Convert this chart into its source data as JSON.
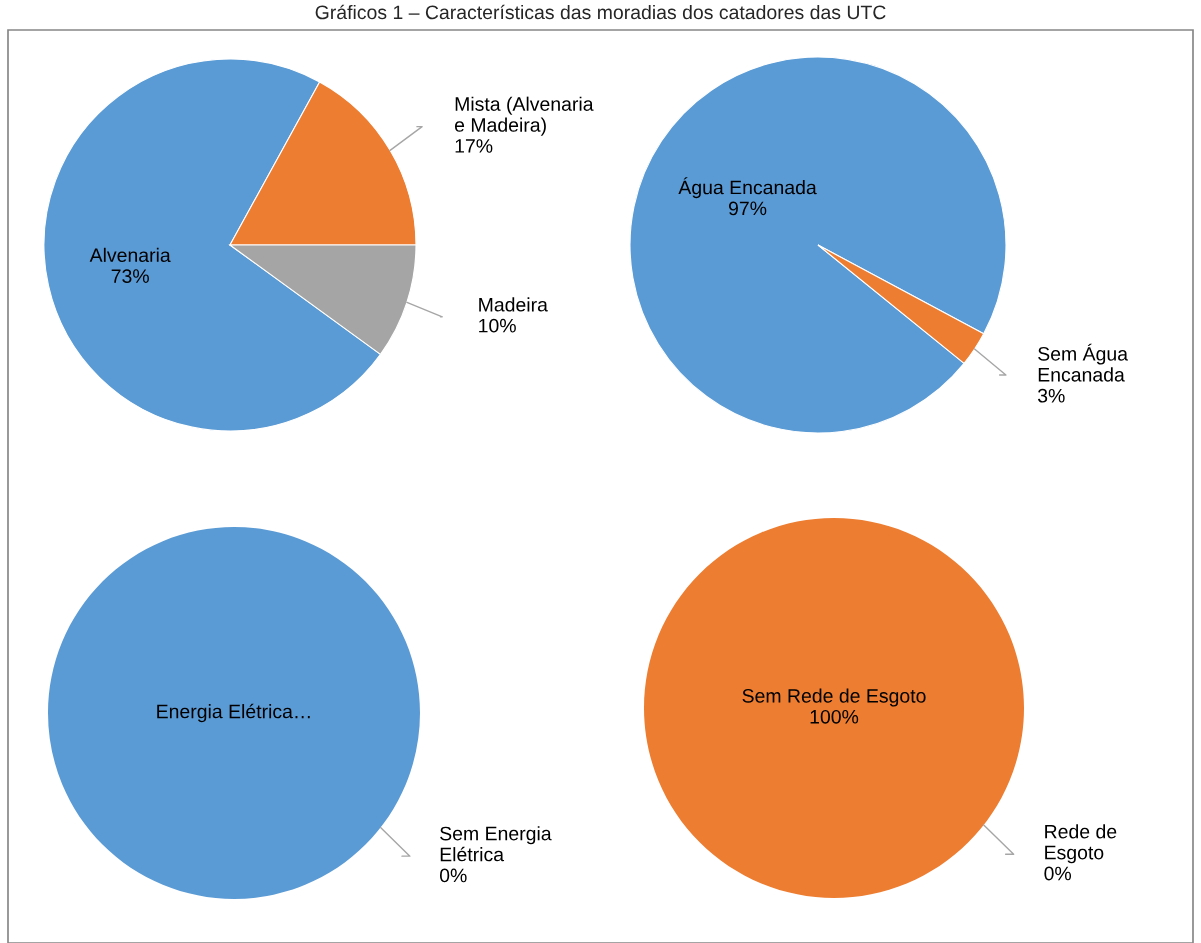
{
  "chart_data": [
    {
      "type": "pie",
      "title": "Gráficos 1 – Características das moradias dos catadores das UTC",
      "categories": [
        "Alvenaria",
        "Mista (Alvenaria\ne Madeira)",
        "Madeira"
      ],
      "values": [
        73,
        17,
        10
      ],
      "colors": [
        "#5b9bd5",
        "#ed7d31",
        "#a5a5a5"
      ],
      "value_labels": [
        "73%",
        "17%",
        "10%"
      ]
    },
    {
      "type": "pie",
      "categories": [
        "Água Encanada",
        "Sem Água\nEncanada"
      ],
      "values": [
        97,
        3
      ],
      "colors": [
        "#5b9bd5",
        "#ed7d31"
      ],
      "value_labels": [
        "97%",
        "3%"
      ]
    },
    {
      "type": "pie",
      "categories": [
        "Energia Elétrica…",
        "Sem Energia\nElétrica"
      ],
      "values": [
        100,
        0
      ],
      "colors": [
        "#5b9bd5",
        "#ed7d31"
      ],
      "value_labels": [
        null,
        "0%"
      ]
    },
    {
      "type": "pie",
      "categories": [
        "Sem Rede de Esgoto",
        "Rede de\nEsgoto"
      ],
      "values": [
        100,
        0
      ],
      "colors": [
        "#ed7d31",
        "#5b9bd5"
      ],
      "value_labels": [
        "100%",
        "0%"
      ]
    }
  ]
}
